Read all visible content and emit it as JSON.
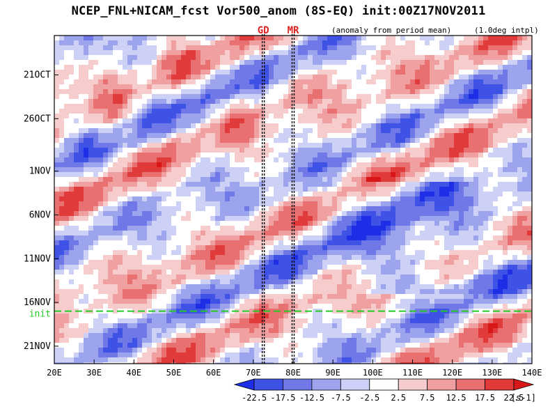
{
  "chart_data": {
    "type": "heatmap",
    "title": "NCEP_FNL+NICAM_fcst Vor500_anom (8S-EQ) init:00Z17NOV2011",
    "subtitle": "(anomaly from period mean)",
    "subtitle2": "(1.0deg intpl)",
    "xlabel": "",
    "ylabel": "",
    "x_ticks": [
      "20E",
      "30E",
      "40E",
      "50E",
      "60E",
      "70E",
      "80E",
      "90E",
      "100E",
      "110E",
      "120E",
      "130E",
      "140E"
    ],
    "xlim": [
      20,
      140
    ],
    "y_ticks": [
      "21OCT",
      "26OCT",
      "1NOV",
      "6NOV",
      "11NOV",
      "16NOV",
      "21NOV"
    ],
    "y_tick_days": [
      21,
      26,
      32,
      37,
      42,
      47,
      52
    ],
    "ylim_days": [
      16.5,
      54
    ],
    "init_label": "init",
    "init_day": 48,
    "init_color": "#22cc22",
    "markers": [
      {
        "label": "GD",
        "lon": 72.5,
        "color": "#dd2222"
      },
      {
        "label": "MR",
        "lon": 80,
        "color": "#dd2222"
      }
    ],
    "colorbar": {
      "labels": [
        "-22.5",
        "-17.5",
        "-12.5",
        "-7.5",
        "-2.5",
        "2.5",
        "7.5",
        "12.5",
        "17.5",
        "22.5"
      ],
      "unit": "[s-1]",
      "colors": [
        "#1e2ee6",
        "#3f52e6",
        "#6f78e6",
        "#9da4ee",
        "#cdd1f6",
        "#ffffff",
        "#f6cccc",
        "#f0a0a0",
        "#e87070",
        "#e03a3a",
        "#d81818"
      ]
    }
  }
}
